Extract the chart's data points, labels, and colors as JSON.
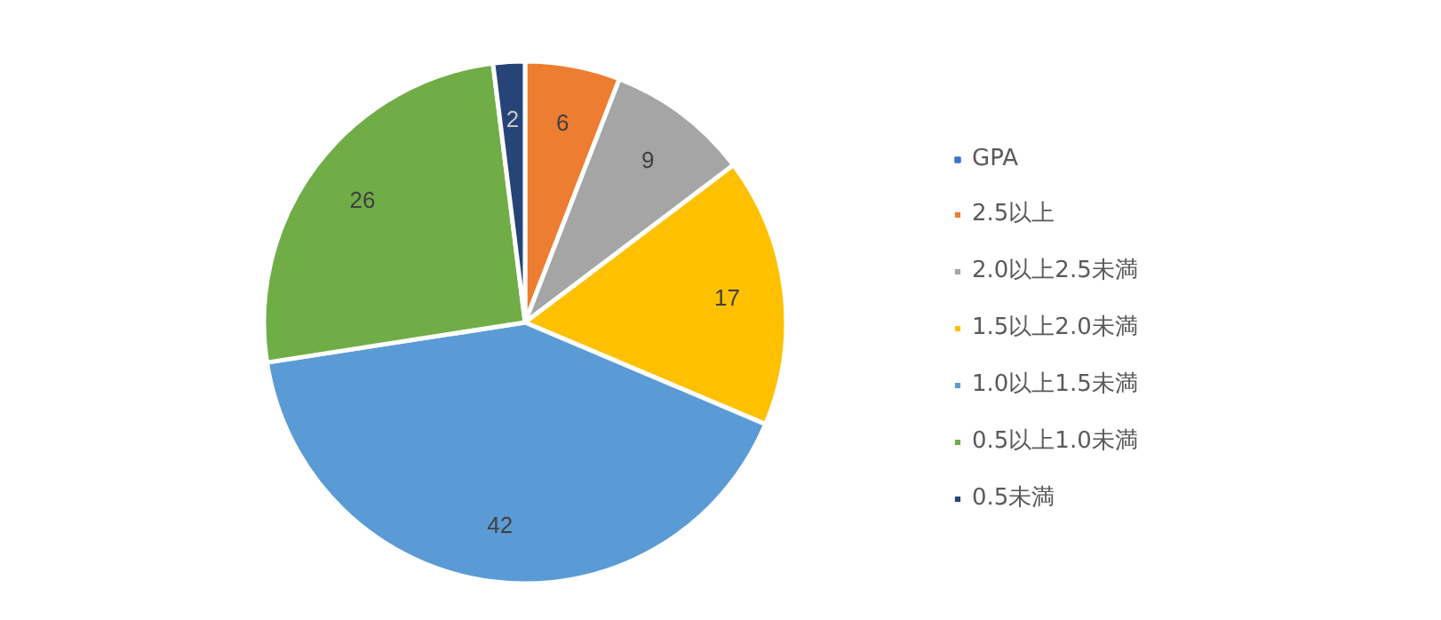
{
  "chart_data": {
    "type": "pie",
    "categories": [
      "GPA",
      "2.5以上",
      "2.0以上2.5未満",
      "1.5以上2.0未満",
      "1.0以上1.5未満",
      "0.5以上1.0未満",
      "0.5未満"
    ],
    "values": [
      0,
      6,
      9,
      17,
      42,
      26,
      2
    ],
    "colors": [
      "#4472c4",
      "#ed7d31",
      "#a5a5a5",
      "#ffc000",
      "#5b9bd5",
      "#70ad47",
      "#264478"
    ],
    "value_labels": [
      null,
      "6",
      "9",
      "17",
      "42",
      "26",
      "2"
    ],
    "legend": "right"
  }
}
